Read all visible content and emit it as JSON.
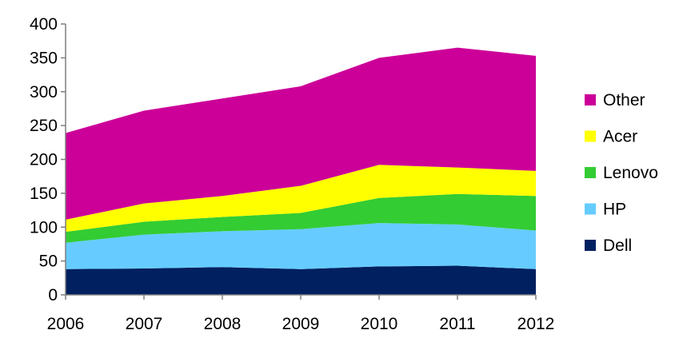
{
  "chart_data": {
    "type": "area",
    "stacked": true,
    "x": [
      "2006",
      "2007",
      "2008",
      "2009",
      "2010",
      "2011",
      "2012"
    ],
    "ylim": [
      0,
      400
    ],
    "yticks": [
      0,
      50,
      100,
      150,
      200,
      250,
      300,
      350,
      400
    ],
    "grid": false,
    "legend_position": "right",
    "series": [
      {
        "name": "Dell",
        "color": "#002060",
        "values": [
          38,
          39,
          41,
          38,
          42,
          43,
          38
        ]
      },
      {
        "name": "HP",
        "color": "#66CCFF",
        "values": [
          39,
          50,
          53,
          59,
          64,
          61,
          57
        ]
      },
      {
        "name": "Lenovo",
        "color": "#33CC33",
        "values": [
          16,
          19,
          21,
          24,
          37,
          45,
          51
        ]
      },
      {
        "name": "Acer",
        "color": "#FFFF00",
        "values": [
          18,
          27,
          31,
          40,
          49,
          39,
          37
        ]
      },
      {
        "name": "Other",
        "color": "#CC0099",
        "values": [
          128,
          137,
          144,
          147,
          158,
          177,
          170
        ]
      }
    ]
  }
}
